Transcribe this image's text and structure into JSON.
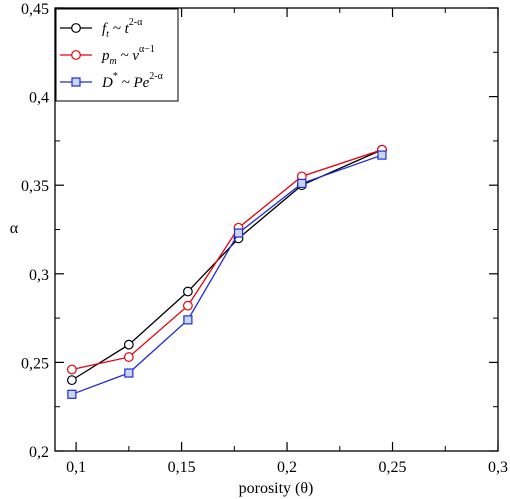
{
  "chart_data": {
    "type": "line",
    "xlabel": "porosity (θ)",
    "ylabel": "α",
    "xlim": [
      0.09,
      0.3
    ],
    "ylim": [
      0.2,
      0.45
    ],
    "xticks": [
      0.1,
      0.15,
      0.2,
      0.25,
      0.3
    ],
    "yticks": [
      0.2,
      0.25,
      0.3,
      0.35,
      0.4,
      0.45
    ],
    "xtick_labels": [
      "0,1",
      "0,15",
      "0,2",
      "0,25",
      "0,3"
    ],
    "ytick_labels": [
      "0,2",
      "0,25",
      "0,3",
      "0,35",
      "0,4",
      "0,45"
    ],
    "legend_position": "top-left",
    "grid": false,
    "series": [
      {
        "name": "f_t ~ t^(2-α)",
        "legend": {
          "main": "f",
          "sub": "t",
          "mid": " ~ t",
          "sup": "2-α"
        },
        "color": "#000000",
        "marker": "circle",
        "x": [
          0.098,
          0.125,
          0.153,
          0.177,
          0.207,
          0.245
        ],
        "y": [
          0.24,
          0.26,
          0.29,
          0.32,
          0.35,
          0.37
        ]
      },
      {
        "name": "p_m ~ v^(α-1)",
        "legend": {
          "main": "p",
          "sub": "m",
          "mid": " ~ v",
          "sup": "α−1"
        },
        "color": "#e8000b",
        "marker": "circle",
        "x": [
          0.098,
          0.125,
          0.153,
          0.177,
          0.207,
          0.245
        ],
        "y": [
          0.246,
          0.253,
          0.282,
          0.326,
          0.355,
          0.37
        ]
      },
      {
        "name": "D* ~ Pe^(2-α)",
        "legend": {
          "main": "D",
          "sup1": "*",
          "mid": " ~ Pe",
          "sup": "2-α"
        },
        "color": "#1f2bd6",
        "marker": "square",
        "x": [
          0.098,
          0.125,
          0.153,
          0.177,
          0.207,
          0.245
        ],
        "y": [
          0.232,
          0.244,
          0.274,
          0.323,
          0.351,
          0.367
        ]
      }
    ]
  }
}
